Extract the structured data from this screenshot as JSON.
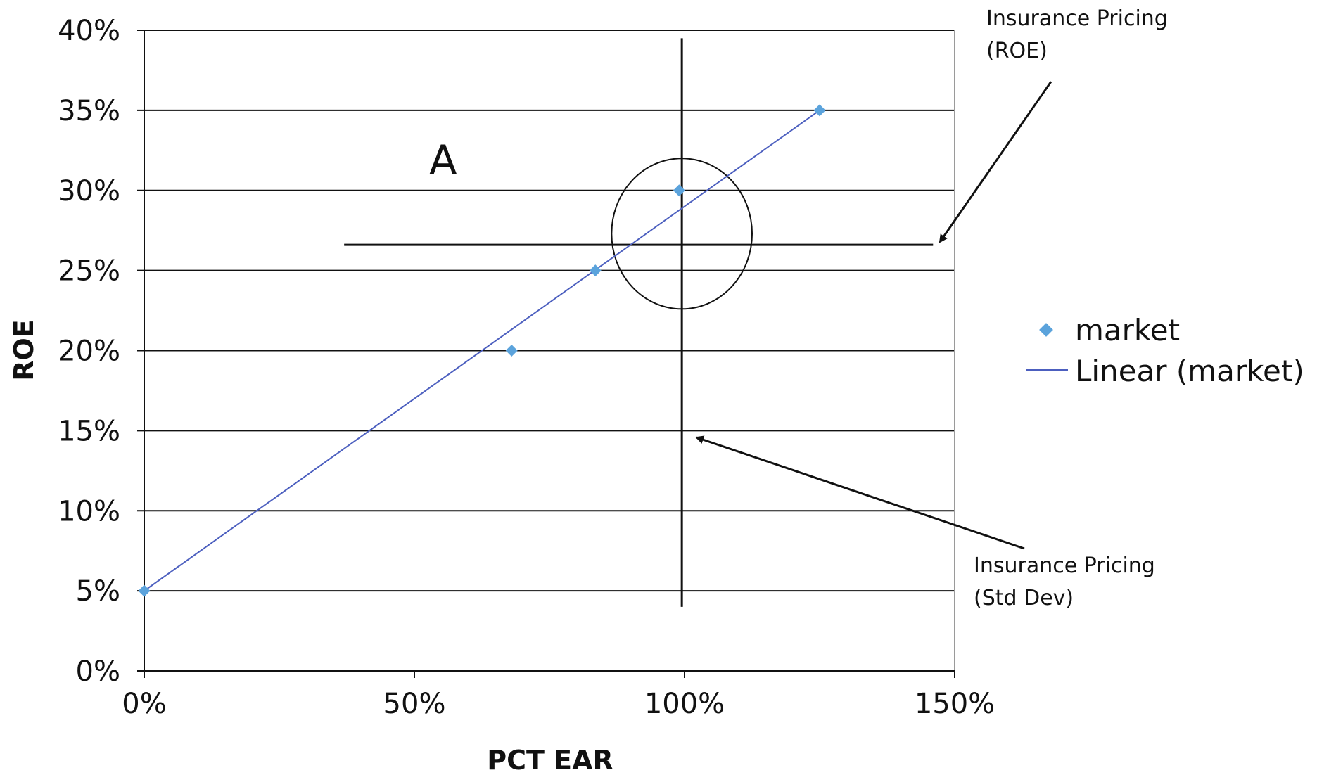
{
  "chart_data": {
    "type": "scatter",
    "xlabel": "PCT EAR",
    "ylabel": "ROE",
    "xlim": [
      0,
      150
    ],
    "ylim": [
      0,
      40
    ],
    "x_ticks": [
      "0%",
      "50%",
      "100%",
      "150%"
    ],
    "y_ticks": [
      "0%",
      "5%",
      "10%",
      "15%",
      "20%",
      "25%",
      "30%",
      "35%",
      "40%"
    ],
    "grid": "horizontal",
    "legend_position": "right",
    "series": [
      {
        "name": "market",
        "type": "scatter",
        "color": "#5ba3dc",
        "x": [
          0,
          68,
          83.5,
          99,
          125
        ],
        "y": [
          5,
          20,
          25,
          30,
          35
        ]
      },
      {
        "name": "Linear (market)",
        "type": "line",
        "color": "#4c5fbf",
        "x": [
          0,
          125
        ],
        "y": [
          5,
          35
        ]
      }
    ],
    "reference_lines": {
      "vertical_x": 99.5,
      "vertical_y_range": [
        4,
        39.5
      ],
      "horizontal_y": 26.6,
      "horizontal_x_range": [
        37,
        146
      ]
    },
    "ellipse": {
      "cx": 99.5,
      "cy": 27.3,
      "rx": 13,
      "ry": 4.7
    },
    "annotations": {
      "letter": "A",
      "roe_label_line1": "Insurance Pricing",
      "roe_label_line2": "(ROE)",
      "std_label_line1": "Insurance Pricing",
      "std_label_line2": "(Std Dev)"
    }
  }
}
